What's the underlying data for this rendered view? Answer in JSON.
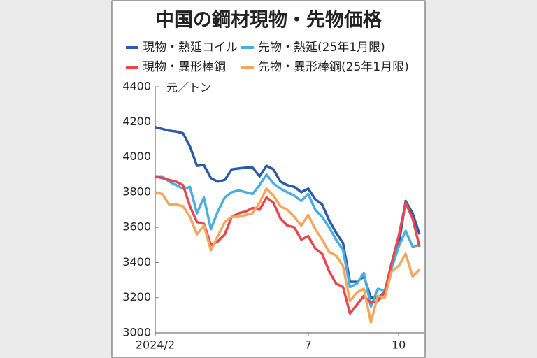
{
  "chart_data": {
    "type": "line",
    "title": "中国の鋼材現物・先物価格",
    "y_label": "元／トン",
    "categories": [
      "2024/2",
      null,
      null,
      null,
      null,
      null,
      null,
      null,
      null,
      null,
      null,
      null,
      null,
      null,
      null,
      null,
      null,
      null,
      null,
      null,
      null,
      null,
      "7",
      null,
      null,
      null,
      null,
      null,
      null,
      null,
      null,
      null,
      null,
      null,
      null,
      "10",
      null,
      null,
      null
    ],
    "series": [
      {
        "name": "現物・熱延コイル",
        "color": "#2b5aa8",
        "values": [
          4170,
          4160,
          4150,
          4145,
          4135,
          4060,
          3950,
          3955,
          3880,
          3860,
          3870,
          3930,
          3935,
          3940,
          3940,
          3890,
          3950,
          3930,
          3860,
          3840,
          3830,
          3800,
          3820,
          3760,
          3730,
          3640,
          3570,
          3510,
          3290,
          3290,
          3320,
          3200,
          3200,
          3230,
          3400,
          3500,
          3750,
          3680,
          3560
        ]
      },
      {
        "name": "先物・熱延(25年1月限)",
        "color": "#4aaee0",
        "values": [
          3890,
          3890,
          3860,
          3840,
          3820,
          3830,
          3680,
          3770,
          3590,
          3690,
          3770,
          3800,
          3810,
          3800,
          3790,
          3840,
          3900,
          3850,
          3820,
          3800,
          3780,
          3750,
          3790,
          3700,
          3660,
          3600,
          3530,
          3470,
          3260,
          3280,
          3340,
          3150,
          3250,
          3240,
          3370,
          3490,
          3580,
          3490,
          3500
        ]
      },
      {
        "name": "現物・異形棒鋼",
        "color": "#e8474e",
        "values": [
          3890,
          3880,
          3870,
          3860,
          3840,
          3720,
          3630,
          3620,
          3500,
          3520,
          3560,
          3660,
          3680,
          3690,
          3710,
          3700,
          3770,
          3740,
          3650,
          3610,
          3600,
          3530,
          3550,
          3480,
          3450,
          3350,
          3280,
          3260,
          3110,
          3160,
          3210,
          3170,
          3180,
          3230,
          3400,
          3550,
          3740,
          3650,
          3490
        ]
      },
      {
        "name": "先物・異形棒鋼(25年1月限)",
        "color": "#f5a85b",
        "values": [
          3800,
          3790,
          3730,
          3730,
          3720,
          3660,
          3560,
          3610,
          3470,
          3550,
          3630,
          3660,
          3660,
          3670,
          3680,
          3740,
          3820,
          3780,
          3720,
          3700,
          3660,
          3610,
          3670,
          3590,
          3530,
          3460,
          3440,
          3380,
          3180,
          3230,
          3250,
          3060,
          3210,
          3200,
          3350,
          3380,
          3450,
          3320,
          3360
        ]
      }
    ],
    "ylim": [
      3000,
      4400
    ],
    "yticks": [
      3000,
      3200,
      3400,
      3600,
      3800,
      4000,
      4200,
      4400
    ],
    "grid": false
  }
}
